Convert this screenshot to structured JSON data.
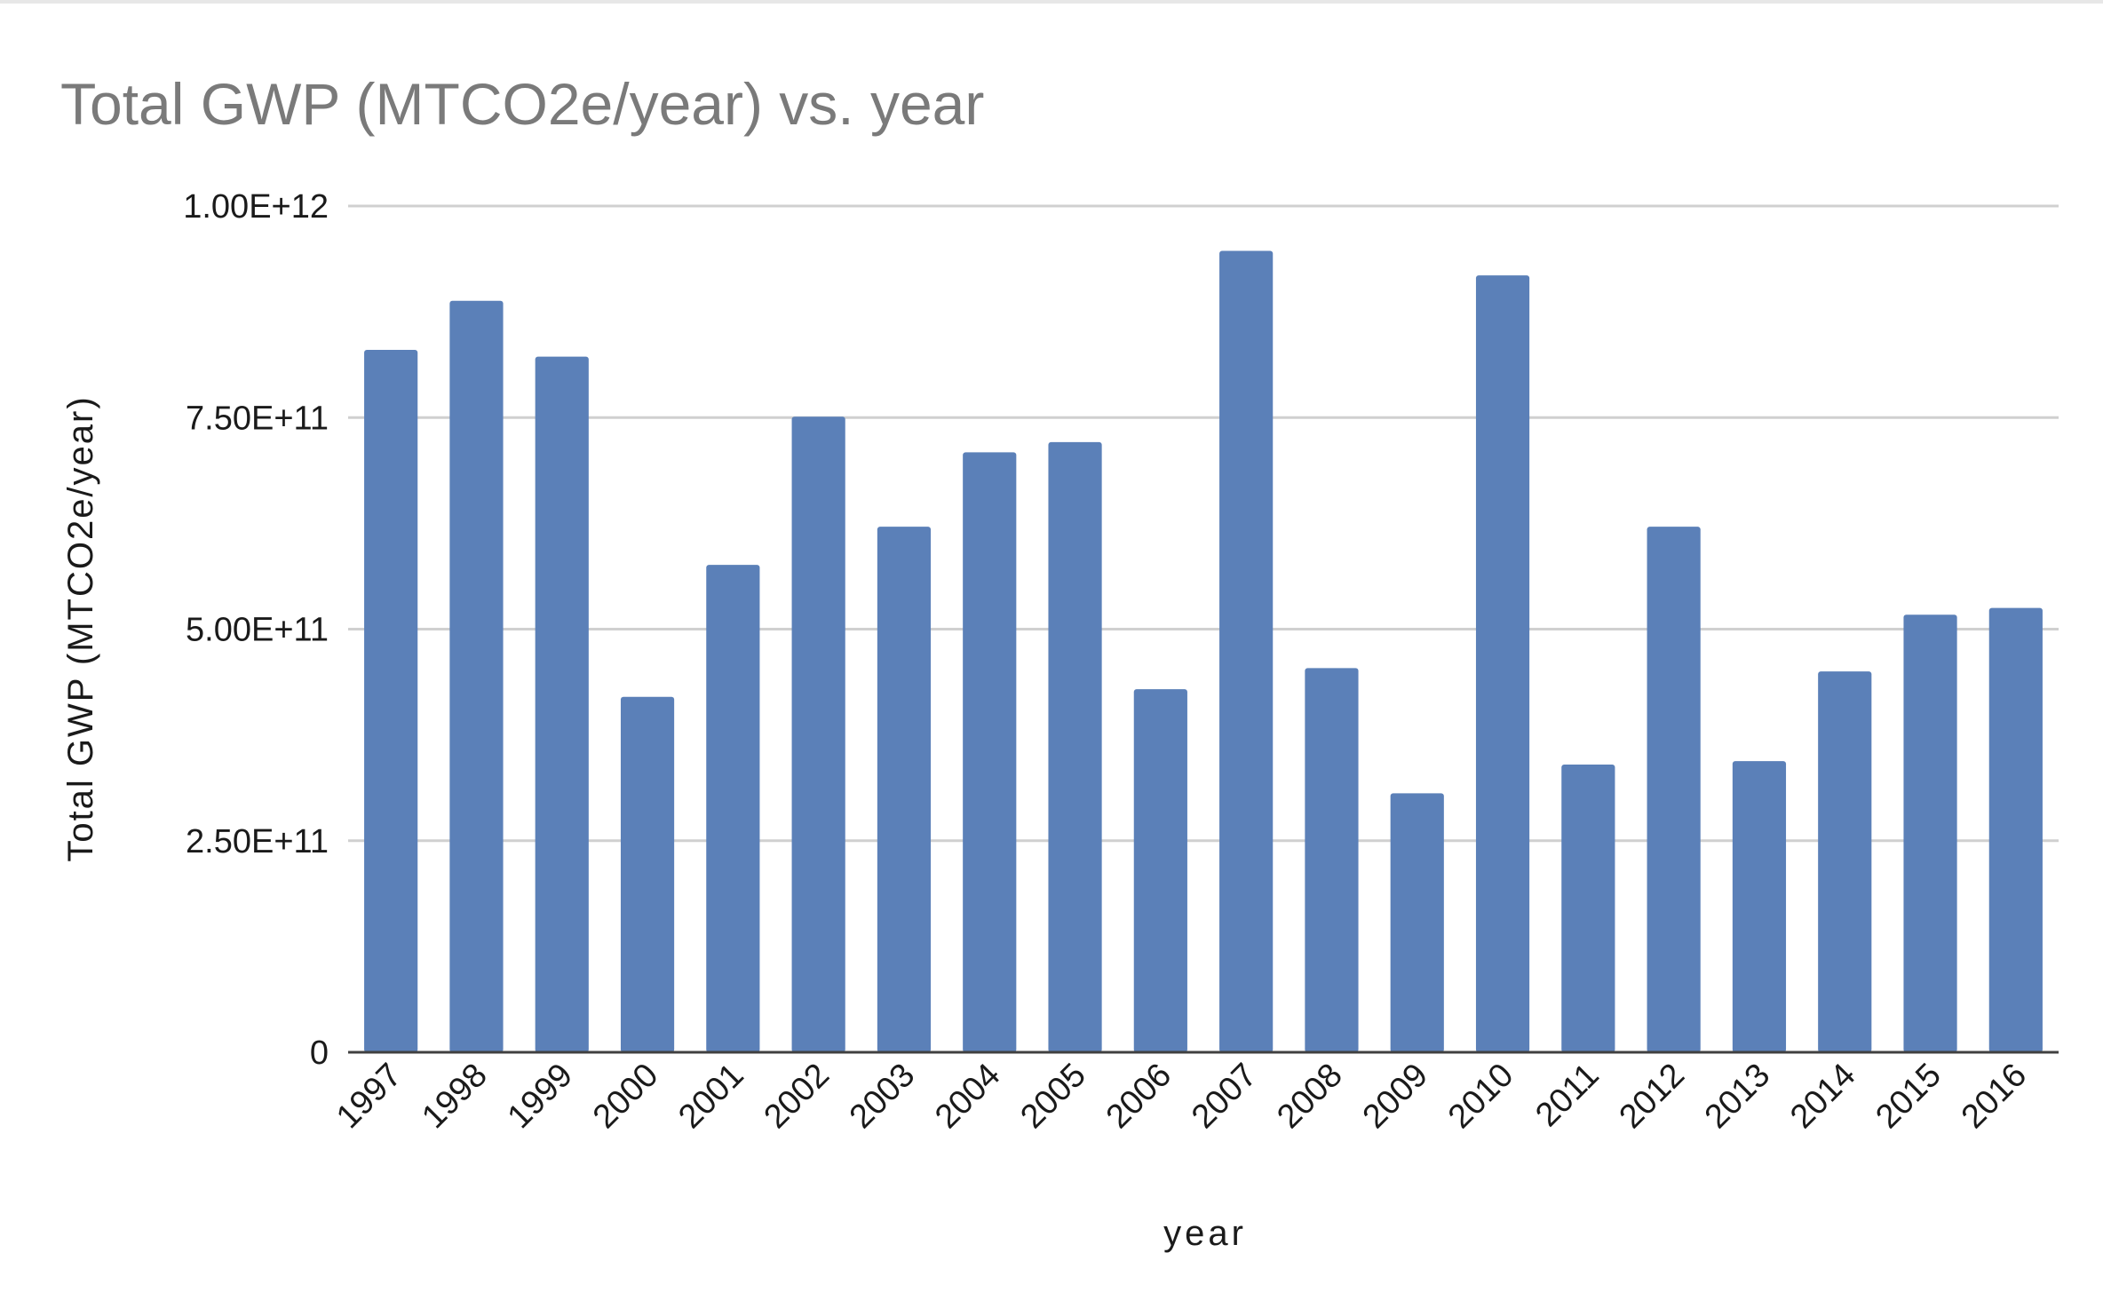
{
  "chart_data": {
    "type": "bar",
    "title": "Total GWP (MTCO2e/year) vs. year",
    "xlabel": "year",
    "ylabel": "Total GWP (MTCO2e/year)",
    "categories": [
      "1997",
      "1998",
      "1999",
      "2000",
      "2001",
      "2002",
      "2003",
      "2004",
      "2005",
      "2006",
      "2007",
      "2008",
      "2009",
      "2010",
      "2011",
      "2012",
      "2013",
      "2014",
      "2015",
      "2016"
    ],
    "values": [
      830000000000.0,
      888000000000.0,
      822000000000.0,
      420000000000.0,
      576000000000.0,
      751000000000.0,
      621000000000.0,
      709000000000.0,
      721000000000.0,
      429000000000.0,
      947000000000.0,
      454000000000.0,
      306000000000.0,
      918000000000.0,
      340000000000.0,
      621000000000.0,
      344000000000.0,
      450000000000.0,
      517000000000.0,
      525000000000.0
    ],
    "ylim": [
      0,
      1000000000000
    ],
    "yticks": [
      0,
      250000000000,
      500000000000,
      750000000000,
      1000000000000
    ],
    "ytick_labels": [
      "0",
      "2.50E+11",
      "5.00E+11",
      "7.50E+11",
      "1.00E+12"
    ],
    "grid": true,
    "legend": "none",
    "colors": {
      "bar": "#5b80b8",
      "grid": "#d0d0d0",
      "axis": "#404040",
      "title": "#7a7a7a",
      "text": "#1a1a1a"
    }
  }
}
